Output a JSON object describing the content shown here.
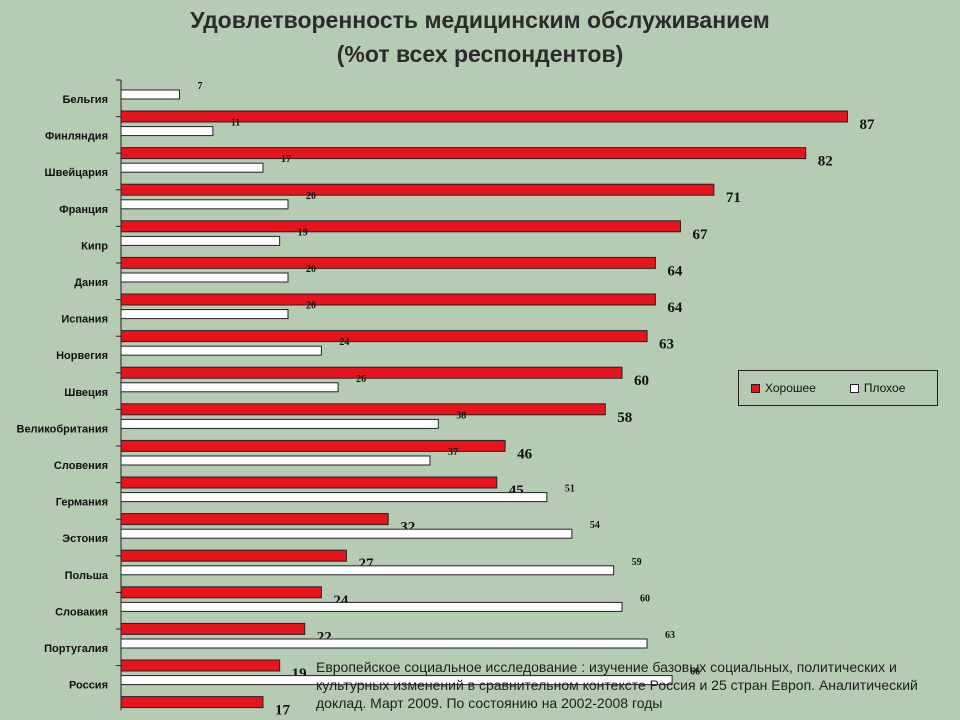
{
  "title": {
    "line1": "Удовлетворенность медицинским обслуживанием",
    "line2": "(%от всех респондентов)"
  },
  "source_note": "Европейское социальное исследование : изучение базовых социальных, политических и культурных изменений в сравнительном контексте Россия и 25 стран Европ. Аналитический доклад. Март 2009. По состоянию на 2002-2008 годы",
  "colors": {
    "good": "#e8141c",
    "bad": "#ffffff",
    "background": "#b5cbb4"
  },
  "chart_data": {
    "type": "bar",
    "orientation": "horizontal",
    "legend_position": "right",
    "grid": false,
    "xlim": [
      0,
      100
    ],
    "categories": [
      "Бельгия",
      "Финляндия",
      "Швейцария",
      "Франция",
      "Кипр",
      "Дания",
      "Испания",
      "Норвегия",
      "Швеция",
      "Великобритания",
      "Словения",
      "Германия",
      "Эстония",
      "Польша",
      "Словакия",
      "Португалия",
      "Россия"
    ],
    "series": [
      {
        "name": "Хорошее",
        "color": "#e8141c",
        "values": [
          87,
          82,
          71,
          67,
          64,
          64,
          63,
          60,
          58,
          46,
          45,
          32,
          27,
          24,
          22,
          19,
          17
        ]
      },
      {
        "name": "Плохое",
        "color": "#ffffff",
        "values": [
          7,
          11,
          17,
          20,
          19,
          20,
          20,
          24,
          26,
          38,
          37,
          51,
          54,
          59,
          60,
          63,
          66
        ]
      }
    ]
  }
}
